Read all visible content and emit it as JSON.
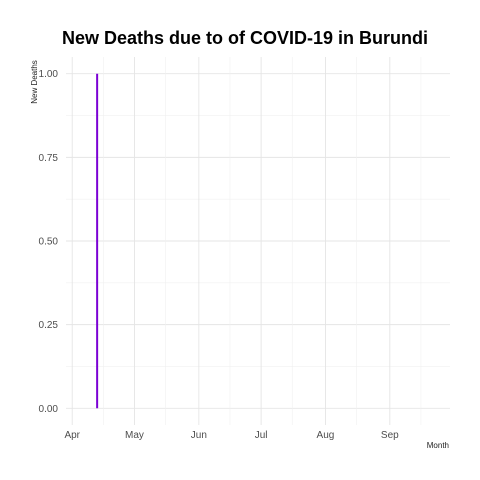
{
  "chart_data": {
    "type": "line",
    "title": "New Deaths due to of COVID-19 in Burundi",
    "xlabel": "Month",
    "ylabel": "New Deaths",
    "x_ticks": [
      "Apr",
      "May",
      "Jun",
      "Jul",
      "Aug",
      "Sep"
    ],
    "y_ticks": [
      "0.00",
      "0.25",
      "0.50",
      "0.75",
      "1.00"
    ],
    "xlim": [
      "2020-03-29",
      "2020-09-30"
    ],
    "ylim": [
      -0.05,
      1.05
    ],
    "grid": true,
    "series": [
      {
        "color": "#7b00d4",
        "points": [
          {
            "x": "2020-04-13",
            "y": 0
          },
          {
            "x": "2020-04-13",
            "y": 1
          }
        ]
      }
    ]
  }
}
